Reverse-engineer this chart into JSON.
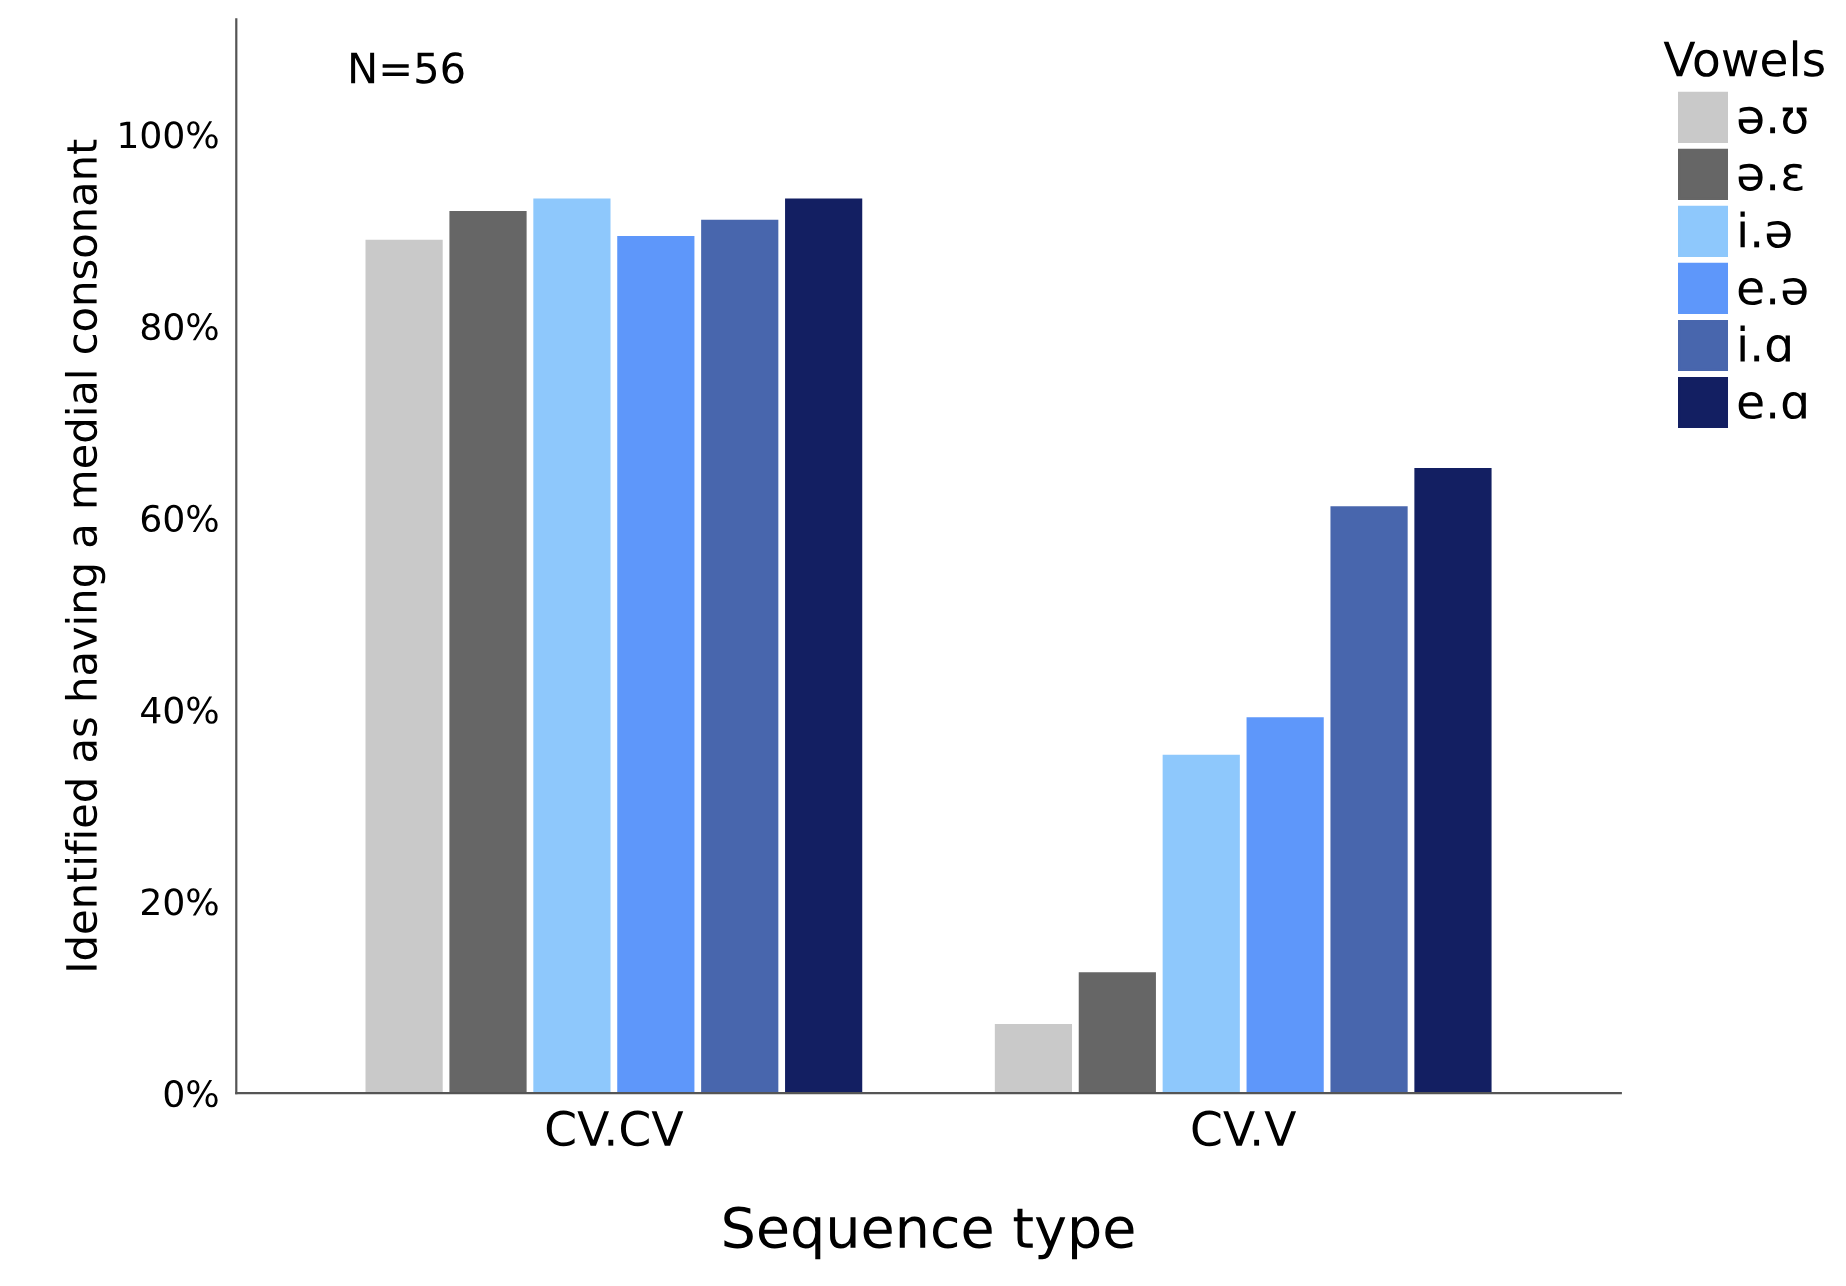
{
  "chart_data": {
    "type": "bar",
    "xlabel": "Sequence type",
    "ylabel": "Identified as having a medial consonant",
    "legend_title": "Vowels",
    "legend": "right",
    "categories": [
      "CV.CV",
      "CV.V"
    ],
    "series": [
      {
        "name": "ə.ʊ",
        "color": "#c9c9c9",
        "values": [
          89.0,
          7.2
        ]
      },
      {
        "name": "ə.ɛ",
        "color": "#666666",
        "values": [
          92.0,
          12.6
        ]
      },
      {
        "name": "i.ə",
        "color": "#8ec8fc",
        "values": [
          93.3,
          35.3
        ]
      },
      {
        "name": "e.ə",
        "color": "#5e97fa",
        "values": [
          89.4,
          39.2
        ]
      },
      {
        "name": "i.ɑ",
        "color": "#4866ad",
        "values": [
          91.1,
          61.2
        ]
      },
      {
        "name": "e.ɑ",
        "color": "#131f62",
        "values": [
          93.3,
          65.2
        ]
      }
    ],
    "ylim": [
      0,
      112
    ],
    "yticks": [
      {
        "value": 0,
        "label": "0%"
      },
      {
        "value": 20,
        "label": "20%"
      },
      {
        "value": 40,
        "label": "40%"
      },
      {
        "value": 60,
        "label": "60%"
      },
      {
        "value": 80,
        "label": "80%"
      },
      {
        "value": 100,
        "label": "100%"
      }
    ],
    "grid": false,
    "annotations": [
      "N=56"
    ]
  }
}
